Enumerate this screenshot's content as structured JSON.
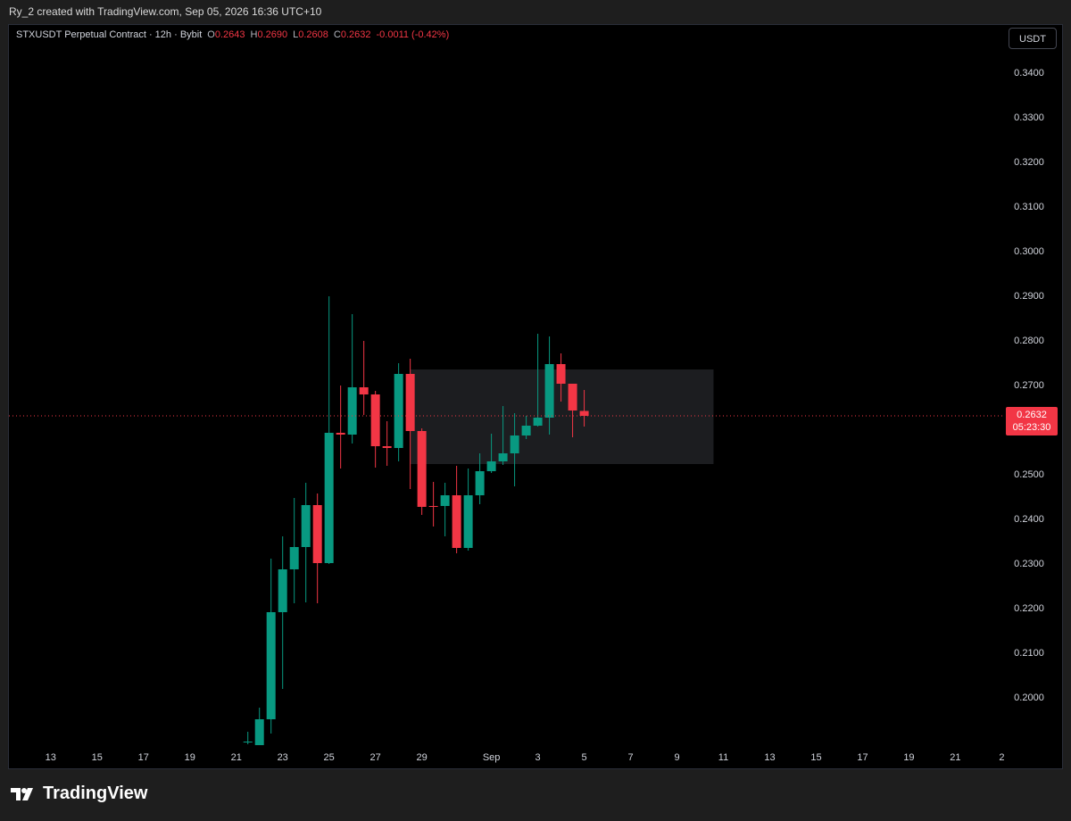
{
  "header": {
    "text": "Ry_2 created with TradingView.com, Sep 05, 2026 16:36 UTC+10"
  },
  "chart_data": {
    "type": "candlestick",
    "title": "STXUSDT Perpetual Contract · 12h · Bybit",
    "legend_values": [
      {
        "label": "O",
        "value": "0.2643"
      },
      {
        "label": "H",
        "value": "0.2690"
      },
      {
        "label": "L",
        "value": "0.2608"
      },
      {
        "label": "C",
        "value": "0.2632"
      }
    ],
    "change": "-0.0011 (-0.42%)",
    "currency_button": "USDT",
    "categories": [
      null,
      null,
      null,
      null,
      null,
      null,
      null,
      null,
      null,
      null,
      null,
      null,
      null,
      null,
      null,
      null,
      null,
      null,
      null,
      null,
      null,
      null,
      null,
      null,
      null,
      null,
      null,
      null,
      null,
      null
    ],
    "open": [
      0.19,
      0.1894,
      0.1952,
      0.2192,
      0.2288,
      0.2338,
      0.2432,
      0.2302,
      0.2594,
      0.259,
      0.2696,
      0.268,
      0.2564,
      0.256,
      0.2726,
      0.2598,
      0.243,
      0.243,
      0.2454,
      0.2336,
      0.2454,
      0.2508,
      0.253,
      0.2548,
      0.2588,
      0.261,
      0.2628,
      0.2748,
      0.2704,
      0.2643
    ],
    "high": [
      0.1924,
      0.1978,
      0.2312,
      0.2362,
      0.2448,
      0.2482,
      0.2458,
      0.29,
      0.27,
      0.286,
      0.28,
      0.2688,
      0.262,
      0.275,
      0.276,
      0.2604,
      0.2484,
      0.2482,
      0.252,
      0.2514,
      0.2548,
      0.2592,
      0.2654,
      0.2638,
      0.2632,
      0.2816,
      0.281,
      0.2772,
      0.27,
      0.269
    ],
    "low": [
      0.1896,
      0.188,
      0.192,
      0.202,
      0.2212,
      0.2214,
      0.2212,
      0.23,
      0.2514,
      0.257,
      0.2634,
      0.2516,
      0.252,
      0.253,
      0.2468,
      0.241,
      0.2384,
      0.2362,
      0.2324,
      0.233,
      0.2434,
      0.2504,
      0.2522,
      0.2474,
      0.258,
      0.2608,
      0.259,
      0.2664,
      0.2584,
      0.2608
    ],
    "close": [
      0.1902,
      0.1952,
      0.2192,
      0.2288,
      0.2338,
      0.2432,
      0.2302,
      0.2594,
      0.259,
      0.2696,
      0.268,
      0.2564,
      0.256,
      0.2726,
      0.2598,
      0.2428,
      0.2428,
      0.2454,
      0.2336,
      0.2454,
      0.2508,
      0.253,
      0.2548,
      0.2588,
      0.261,
      0.2628,
      0.2748,
      0.2704,
      0.2644,
      0.2632
    ],
    "up_color": "#089981",
    "down_color": "#f23645",
    "xlim": [
      -20.6,
      65.2
    ],
    "ylim": [
      0.1894,
      0.3508
    ],
    "xticks": [
      {
        "value": -17,
        "label": "13"
      },
      {
        "value": -13,
        "label": "15"
      },
      {
        "value": -9,
        "label": "17"
      },
      {
        "value": -5,
        "label": "19"
      },
      {
        "value": -1,
        "label": "21"
      },
      {
        "value": 3,
        "label": "23"
      },
      {
        "value": 7,
        "label": "25"
      },
      {
        "value": 11,
        "label": "27"
      },
      {
        "value": 15,
        "label": "29"
      },
      {
        "value": 21,
        "label": "Sep"
      },
      {
        "value": 25,
        "label": "3"
      },
      {
        "value": 29,
        "label": "5"
      },
      {
        "value": 33,
        "label": "7"
      },
      {
        "value": 37,
        "label": "9"
      },
      {
        "value": 41,
        "label": "11"
      },
      {
        "value": 45,
        "label": "13"
      },
      {
        "value": 49,
        "label": "15"
      },
      {
        "value": 53,
        "label": "17"
      },
      {
        "value": 57,
        "label": "19"
      },
      {
        "value": 61,
        "label": "21"
      },
      {
        "value": 65,
        "label": "2"
      }
    ],
    "yticks": [
      {
        "value": 0.2,
        "label": "0.2000"
      },
      {
        "value": 0.21,
        "label": "0.2100"
      },
      {
        "value": 0.22,
        "label": "0.2200"
      },
      {
        "value": 0.23,
        "label": "0.2300"
      },
      {
        "value": 0.24,
        "label": "0.2400"
      },
      {
        "value": 0.25,
        "label": "0.2500"
      },
      {
        "value": 0.27,
        "label": "0.2700"
      },
      {
        "value": 0.28,
        "label": "0.2800"
      },
      {
        "value": 0.29,
        "label": "0.2900"
      },
      {
        "value": 0.3,
        "label": "0.3000"
      },
      {
        "value": 0.31,
        "label": "0.3100"
      },
      {
        "value": 0.32,
        "label": "0.3200"
      },
      {
        "value": 0.33,
        "label": "0.3300"
      },
      {
        "value": 0.34,
        "label": "0.3400"
      }
    ],
    "last_price": {
      "value": 0.2632,
      "countdown": "05:23:30"
    },
    "zone": {
      "xlim": [
        14,
        40.15
      ],
      "ylim": [
        0.2524,
        0.2736
      ]
    }
  },
  "footer": {
    "logo": "TradingView"
  }
}
